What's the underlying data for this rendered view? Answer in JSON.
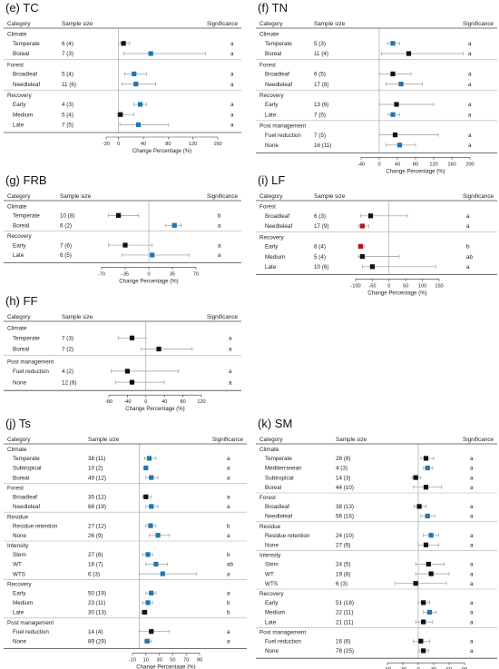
{
  "colors": {
    "black": "#111111",
    "blue": "#1f77b4",
    "red": "#b0171a",
    "whisker": "#9a9a9a"
  },
  "headers": {
    "category": "Category",
    "sample_size": "Sample size",
    "significance": "Significance"
  },
  "axis_label": "Change Percentage (%)",
  "chart_data": [
    {
      "id": "e",
      "type": "forest-plot",
      "title": "(e) TC",
      "xlim": [
        -20,
        160
      ],
      "xticks": [
        -20,
        0,
        40,
        80,
        120,
        160
      ],
      "groups": [
        {
          "name": "Climate",
          "rows": [
            {
              "label": "Temperate",
              "n": "6 (4)",
              "mean": 8,
              "lo": 2,
              "hi": 18,
              "color": "black",
              "sig": "a"
            },
            {
              "label": "Boreal",
              "n": "7 (3)",
              "mean": 52,
              "lo": 8,
              "hi": 140,
              "color": "blue",
              "sig": "a"
            }
          ]
        },
        {
          "name": "Forest",
          "rows": [
            {
              "label": "Broadleaf",
              "n": "5 (4)",
              "mean": 25,
              "lo": 10,
              "hi": 45,
              "color": "blue",
              "sig": "a"
            },
            {
              "label": "Needleleaf",
              "n": "11 (6)",
              "mean": 28,
              "lo": 5,
              "hi": 60,
              "color": "blue",
              "sig": "a"
            }
          ]
        },
        {
          "name": "Recovery",
          "rows": [
            {
              "label": "Early",
              "n": "4 (3)",
              "mean": 35,
              "lo": 25,
              "hi": 45,
              "color": "blue",
              "sig": "a"
            },
            {
              "label": "Medium",
              "n": "5 (4)",
              "mean": 3,
              "lo": -2,
              "hi": 25,
              "color": "black",
              "sig": "a"
            },
            {
              "label": "Late",
              "n": "7 (5)",
              "mean": 32,
              "lo": 2,
              "hi": 80,
              "color": "blue",
              "sig": "a"
            }
          ]
        }
      ]
    },
    {
      "id": "f",
      "type": "forest-plot",
      "title": "(f) TN",
      "xlim": [
        -40,
        200
      ],
      "xticks": [
        -40,
        0,
        40,
        80,
        120,
        160,
        200
      ],
      "groups": [
        {
          "name": "Climate",
          "rows": [
            {
              "label": "Temperate",
              "n": "5 (3)",
              "mean": 30,
              "lo": 18,
              "hi": 45,
              "color": "blue",
              "sig": "a"
            },
            {
              "label": "Boreal",
              "n": "11 (4)",
              "mean": 65,
              "lo": 5,
              "hi": 185,
              "color": "black",
              "sig": "a"
            }
          ]
        },
        {
          "name": "Forest",
          "rows": [
            {
              "label": "Broadleaf",
              "n": "6 (5)",
              "mean": 30,
              "lo": 0,
              "hi": 70,
              "color": "black",
              "sig": "a"
            },
            {
              "label": "Needleleaf",
              "n": "17 (8)",
              "mean": 48,
              "lo": 15,
              "hi": 95,
              "color": "blue",
              "sig": "a"
            }
          ]
        },
        {
          "name": "Recovery",
          "rows": [
            {
              "label": "Early",
              "n": "13 (6)",
              "mean": 38,
              "lo": 0,
              "hi": 120,
              "color": "black",
              "sig": "a"
            },
            {
              "label": "Late",
              "n": "7 (5)",
              "mean": 30,
              "lo": 20,
              "hi": 45,
              "color": "blue",
              "sig": "a"
            }
          ]
        },
        {
          "name": "Post management",
          "rows": [
            {
              "label": "Fuel reduction",
              "n": "7 (5)",
              "mean": 35,
              "lo": 0,
              "hi": 130,
              "color": "black",
              "sig": "a"
            },
            {
              "label": "None",
              "n": "16 (11)",
              "mean": 45,
              "lo": 15,
              "hi": 80,
              "color": "blue",
              "sig": "a"
            }
          ]
        }
      ]
    },
    {
      "id": "g",
      "type": "forest-plot",
      "title": "(g) FRB",
      "xlim": [
        -70,
        70
      ],
      "xticks": [
        -70,
        -35,
        0,
        35,
        70
      ],
      "groups": [
        {
          "name": "Climate",
          "rows": [
            {
              "label": "Temperate",
              "n": "10 (8)",
              "mean": -45,
              "lo": -60,
              "hi": -15,
              "color": "black",
              "sig": "b"
            },
            {
              "label": "Boreal",
              "n": "6 (2)",
              "mean": 38,
              "lo": 25,
              "hi": 48,
              "color": "blue",
              "sig": "a"
            }
          ]
        },
        {
          "name": "Recovery",
          "rows": [
            {
              "label": "Early",
              "n": "7 (6)",
              "mean": -35,
              "lo": -60,
              "hi": 5,
              "color": "black",
              "sig": "a"
            },
            {
              "label": "Late",
              "n": "6 (5)",
              "mean": 5,
              "lo": -40,
              "hi": 60,
              "color": "blue",
              "sig": "a"
            }
          ]
        }
      ]
    },
    {
      "id": "i",
      "type": "forest-plot",
      "title": "(i) LF",
      "xlim": [
        -100,
        150
      ],
      "xticks": [
        -100,
        -50,
        0,
        50,
        100,
        150
      ],
      "groups": [
        {
          "name": "Forest",
          "rows": [
            {
              "label": "Broadleaf",
              "n": "6 (3)",
              "mean": -55,
              "lo": -85,
              "hi": 55,
              "color": "black",
              "sig": "a"
            },
            {
              "label": "Needleleaf",
              "n": "17 (9)",
              "mean": -80,
              "lo": -90,
              "hi": -60,
              "color": "red",
              "sig": "a"
            }
          ]
        },
        {
          "name": "Recovery",
          "rows": [
            {
              "label": "Early",
              "n": "8 (4)",
              "mean": -85,
              "lo": -92,
              "hi": -75,
              "color": "red",
              "sig": "b"
            },
            {
              "label": "Medium",
              "n": "5 (4)",
              "mean": -80,
              "lo": -92,
              "hi": 30,
              "color": "black",
              "sig": "ab"
            },
            {
              "label": "Late",
              "n": "10 (6)",
              "mean": -50,
              "lo": -80,
              "hi": 140,
              "color": "black",
              "sig": "a"
            }
          ]
        }
      ]
    },
    {
      "id": "h",
      "type": "forest-plot",
      "title": "(h) FF",
      "xlim": [
        -80,
        120
      ],
      "xticks": [
        -80,
        -40,
        0,
        40,
        80,
        120
      ],
      "groups": [
        {
          "name": "Climate",
          "rows": [
            {
              "label": "Temperate",
              "n": "7 (3)",
              "mean": -30,
              "lo": -60,
              "hi": 0,
              "color": "black",
              "sig": "a"
            },
            {
              "label": "Boreal",
              "n": "7 (2)",
              "mean": 28,
              "lo": -10,
              "hi": 100,
              "color": "black",
              "sig": "a"
            }
          ]
        },
        {
          "name": "Post management",
          "rows": [
            {
              "label": "Fuel reduction",
              "n": "4 (2)",
              "mean": -40,
              "lo": -75,
              "hi": 70,
              "color": "black",
              "sig": "a"
            },
            {
              "label": "None",
              "n": "12 (6)",
              "mean": -30,
              "lo": -65,
              "hi": 40,
              "color": "black",
              "sig": "a"
            }
          ]
        }
      ]
    },
    {
      "id": "j",
      "type": "forest-plot",
      "title": "(j) Ts",
      "xlim": [
        -10,
        90
      ],
      "xticks": [
        -10,
        10,
        30,
        50,
        70,
        90
      ],
      "groups": [
        {
          "name": "Climate",
          "rows": [
            {
              "label": "Temperate",
              "n": "38 (11)",
              "mean": 15,
              "lo": 8,
              "hi": 25,
              "color": "blue",
              "sig": "a"
            },
            {
              "label": "Subtropical",
              "n": "10 (2)",
              "mean": 10,
              "lo": 8,
              "hi": 12,
              "color": "blue",
              "sig": "a"
            },
            {
              "label": "Boreal",
              "n": "49 (12)",
              "mean": 18,
              "lo": 10,
              "hi": 28,
              "color": "blue",
              "sig": "a"
            }
          ]
        },
        {
          "name": "Forest",
          "rows": [
            {
              "label": "Broadleaf",
              "n": "35 (12)",
              "mean": 10,
              "lo": 5,
              "hi": 18,
              "color": "black",
              "sig": "a"
            },
            {
              "label": "Needleleaf",
              "n": "68 (19)",
              "mean": 18,
              "lo": 10,
              "hi": 28,
              "color": "blue",
              "sig": "a"
            }
          ]
        },
        {
          "name": "Residue",
          "rows": [
            {
              "label": "Residue retention",
              "n": "27 (12)",
              "mean": 17,
              "lo": 10,
              "hi": 25,
              "color": "blue",
              "sig": "b"
            },
            {
              "label": "None",
              "n": "26 (9)",
              "mean": 28,
              "lo": 15,
              "hi": 45,
              "color": "blue",
              "sig": "a"
            }
          ]
        },
        {
          "name": "Intensity",
          "rows": [
            {
              "label": "Stem",
              "n": "27 (6)",
              "mean": 13,
              "lo": 5,
              "hi": 20,
              "color": "blue",
              "sig": "b"
            },
            {
              "label": "WT",
              "n": "16 (7)",
              "mean": 25,
              "lo": 10,
              "hi": 42,
              "color": "blue",
              "sig": "ab"
            },
            {
              "label": "WTS",
              "n": "6 (3)",
              "mean": 35,
              "lo": 0,
              "hi": 85,
              "color": "blue",
              "sig": "a"
            }
          ]
        },
        {
          "name": "Recovery",
          "rows": [
            {
              "label": "Early",
              "n": "50 (19)",
              "mean": 18,
              "lo": 10,
              "hi": 25,
              "color": "blue",
              "sig": "a"
            },
            {
              "label": "Medium",
              "n": "23 (11)",
              "mean": 13,
              "lo": 5,
              "hi": 20,
              "color": "blue",
              "sig": "b"
            },
            {
              "label": "Late",
              "n": "30 (13)",
              "mean": 8,
              "lo": 3,
              "hi": 12,
              "color": "black",
              "sig": "b"
            }
          ]
        },
        {
          "name": "Post management",
          "rows": [
            {
              "label": "Fuel reduction",
              "n": "14 (4)",
              "mean": 18,
              "lo": 0,
              "hi": 45,
              "color": "black",
              "sig": "a"
            },
            {
              "label": "None",
              "n": "89 (29)",
              "mean": 12,
              "lo": 8,
              "hi": 18,
              "color": "blue",
              "sig": "a"
            }
          ]
        }
      ]
    },
    {
      "id": "k",
      "type": "forest-plot",
      "title": "(k) SM",
      "xlim": [
        -60,
        90
      ],
      "xticks": [
        -60,
        -30,
        0,
        30,
        60,
        90
      ],
      "groups": [
        {
          "name": "Climate",
          "rows": [
            {
              "label": "Temperate",
              "n": "28 (8)",
              "mean": 15,
              "lo": 5,
              "hi": 30,
              "color": "black",
              "sig": "a"
            },
            {
              "label": "Mediterranean",
              "n": "4 (3)",
              "mean": 18,
              "lo": 10,
              "hi": 28,
              "color": "blue",
              "sig": "a"
            },
            {
              "label": "Subtropical",
              "n": "14 (3)",
              "mean": -5,
              "lo": -12,
              "hi": 5,
              "color": "black",
              "sig": "a"
            },
            {
              "label": "Boreal",
              "n": "44 (10)",
              "mean": 15,
              "lo": -10,
              "hi": 45,
              "color": "black",
              "sig": "a"
            }
          ]
        },
        {
          "name": "Forest",
          "rows": [
            {
              "label": "Broadleaf",
              "n": "38 (13)",
              "mean": 2,
              "lo": -8,
              "hi": 15,
              "color": "black",
              "sig": "a"
            },
            {
              "label": "Needleleaf",
              "n": "56 (16)",
              "mean": 18,
              "lo": 5,
              "hi": 32,
              "color": "blue",
              "sig": "a"
            }
          ]
        },
        {
          "name": "Residue",
          "rows": [
            {
              "label": "Residue retention",
              "n": "24 (10)",
              "mean": 25,
              "lo": 10,
              "hi": 40,
              "color": "blue",
              "sig": "a"
            },
            {
              "label": "None",
              "n": "27 (9)",
              "mean": 15,
              "lo": 0,
              "hi": 40,
              "color": "black",
              "sig": "a"
            }
          ]
        },
        {
          "name": "Intensity",
          "rows": [
            {
              "label": "Stem",
              "n": "24 (5)",
              "mean": 20,
              "lo": -5,
              "hi": 50,
              "color": "black",
              "sig": "a"
            },
            {
              "label": "WT",
              "n": "19 (8)",
              "mean": 25,
              "lo": -5,
              "hi": 60,
              "color": "black",
              "sig": "a"
            },
            {
              "label": "WTS",
              "n": "6 (3)",
              "mean": -5,
              "lo": -45,
              "hi": 55,
              "color": "black",
              "sig": "a"
            }
          ]
        },
        {
          "name": "Recovery",
          "rows": [
            {
              "label": "Early",
              "n": "51 (18)",
              "mean": 10,
              "lo": 0,
              "hi": 22,
              "color": "black",
              "sig": "a"
            },
            {
              "label": "Medium",
              "n": "22 (11)",
              "mean": 22,
              "lo": 10,
              "hi": 35,
              "color": "blue",
              "sig": "a"
            },
            {
              "label": "Late",
              "n": "21 (11)",
              "mean": 10,
              "lo": -5,
              "hi": 28,
              "color": "black",
              "sig": "a"
            }
          ]
        },
        {
          "name": "Post management",
          "rows": [
            {
              "label": "Fuel reduction",
              "n": "16 (6)",
              "mean": 5,
              "lo": -10,
              "hi": 22,
              "color": "black",
              "sig": "a"
            },
            {
              "label": "None",
              "n": "78 (25)",
              "mean": 10,
              "lo": 2,
              "hi": 20,
              "color": "black",
              "sig": "a"
            }
          ]
        }
      ]
    }
  ]
}
